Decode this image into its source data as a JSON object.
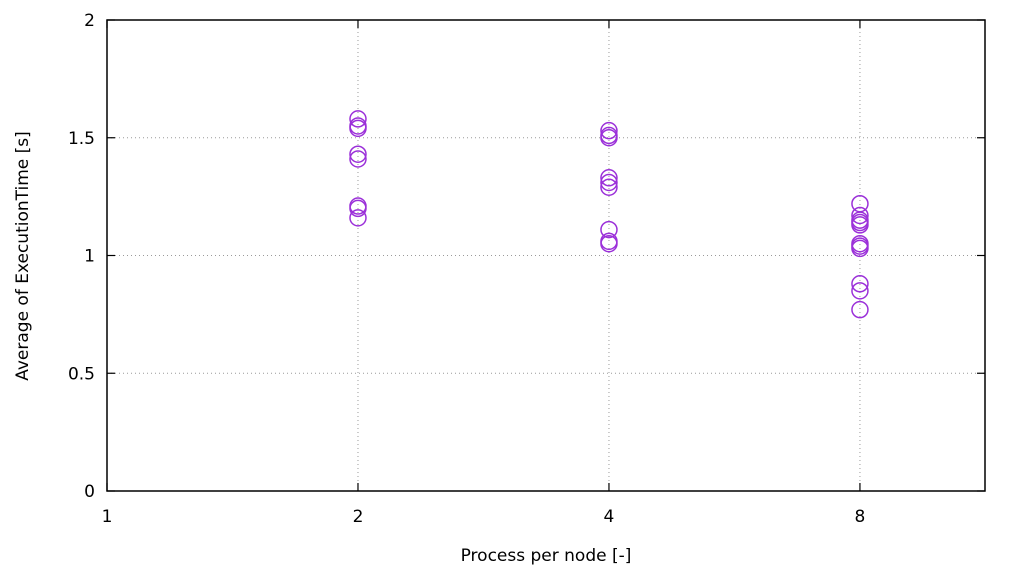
{
  "chart_data": {
    "type": "scatter",
    "title": "",
    "xlabel": "Process per node [-]",
    "ylabel": "Average of ExecutionTime [s]",
    "x_scale": "log2",
    "xlim": [
      1,
      11.3
    ],
    "ylim": [
      0,
      2
    ],
    "x_ticks": [
      1,
      2,
      4,
      8
    ],
    "x_tick_labels": [
      "1",
      "2",
      "4",
      "8"
    ],
    "y_ticks": [
      0,
      0.5,
      1,
      1.5,
      2
    ],
    "y_tick_labels": [
      "0",
      "0.5",
      "1",
      "1.5",
      "2"
    ],
    "grid": true,
    "legend": "none",
    "marker": "open-circle",
    "color": "#9b30d9",
    "series": [
      {
        "points": [
          [
            2,
            1.58
          ],
          [
            2,
            1.55
          ],
          [
            2,
            1.54
          ],
          [
            2,
            1.43
          ],
          [
            2,
            1.41
          ],
          [
            2,
            1.21
          ],
          [
            2,
            1.2
          ],
          [
            2,
            1.16
          ],
          [
            4,
            1.53
          ],
          [
            4,
            1.51
          ],
          [
            4,
            1.5
          ],
          [
            4,
            1.33
          ],
          [
            4,
            1.31
          ],
          [
            4,
            1.29
          ],
          [
            4,
            1.11
          ],
          [
            4,
            1.06
          ],
          [
            4,
            1.05
          ],
          [
            8,
            1.22
          ],
          [
            8,
            1.17
          ],
          [
            8,
            1.15
          ],
          [
            8,
            1.14
          ],
          [
            8,
            1.13
          ],
          [
            8,
            1.05
          ],
          [
            8,
            1.04
          ],
          [
            8,
            1.03
          ],
          [
            8,
            0.88
          ],
          [
            8,
            0.85
          ],
          [
            8,
            0.77
          ]
        ]
      }
    ]
  }
}
